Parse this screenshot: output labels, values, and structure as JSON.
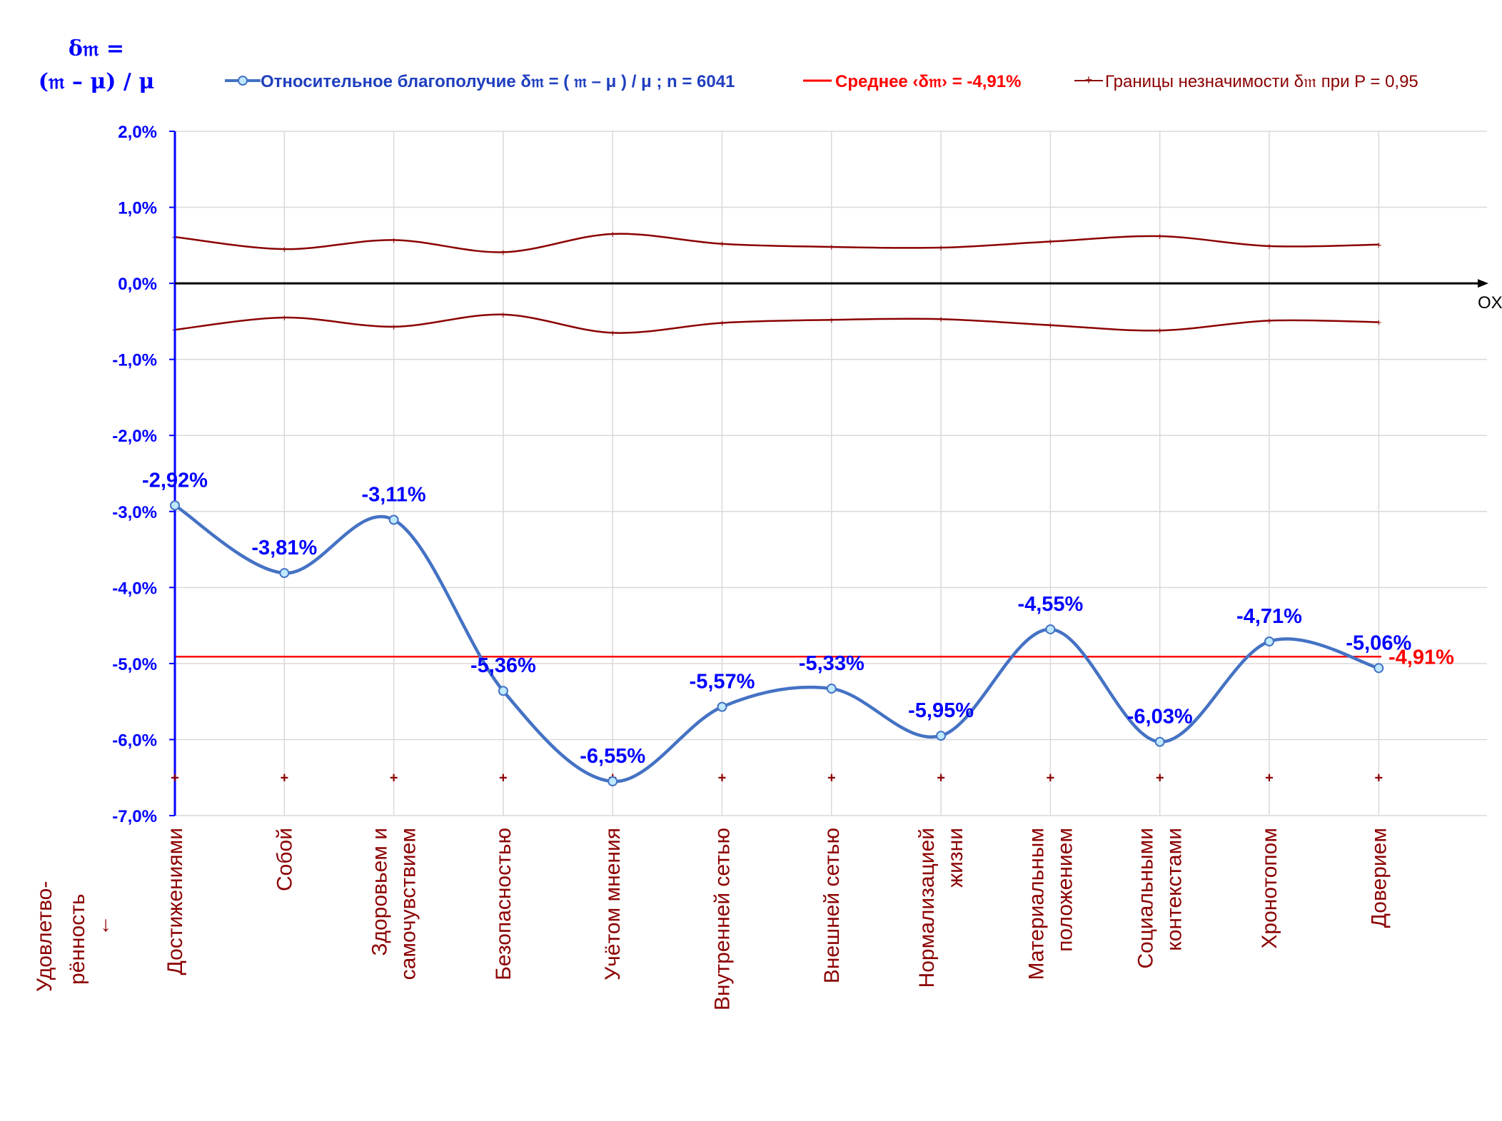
{
  "chart_data": {
    "type": "line",
    "y_title_line1": "δ𝔪 =",
    "y_title_line2": "(𝔪 – μ) / μ",
    "x_axis_label": "OX",
    "left_category_title_line1": "Удовлетво-",
    "left_category_title_line2": "рённость",
    "left_category_arrow": "↓",
    "ylim": [
      -7,
      2
    ],
    "y_ticks": [
      2,
      1,
      0,
      -1,
      -2,
      -3,
      -4,
      -5,
      -6,
      -7
    ],
    "y_tick_labels": [
      "2,0%",
      "1,0%",
      "0,0%",
      "-1,0%",
      "-2,0%",
      "-3,0%",
      "-4,0%",
      "-5,0%",
      "-6,0%",
      "-7,0%"
    ],
    "grid": true,
    "legend_position": "top",
    "categories": [
      [
        "Достижениями"
      ],
      [
        "Собой"
      ],
      [
        "Здоровьем и",
        "самочувствием"
      ],
      [
        "Безопасностью"
      ],
      [
        "Учётом мнения"
      ],
      [
        "Внутренней сетью"
      ],
      [
        "Внешней сетью"
      ],
      [
        "Нормализацией",
        "жизни"
      ],
      [
        "Материальным",
        "положением"
      ],
      [
        "Социальными",
        "контекстами"
      ],
      [
        "Хронотопом"
      ],
      [
        "Доверием"
      ]
    ],
    "series": [
      {
        "name": "Относительное благополучие δ𝔪 = ( 𝔪 – μ ) / μ ; n = 6041",
        "color": "#4472c4",
        "values": [
          -2.92,
          -3.81,
          -3.11,
          -5.36,
          -6.55,
          -5.57,
          -5.33,
          -5.95,
          -4.55,
          -6.03,
          -4.71,
          -5.06
        ],
        "labels": [
          "-2,92%",
          "-3,81%",
          "-3,11%",
          "-5,36%",
          "-6,55%",
          "-5,57%",
          "-5,33%",
          "-5,95%",
          "-4,55%",
          "-6,03%",
          "-4,71%",
          "-5,06%"
        ]
      },
      {
        "name": "Среднее ‹δ𝔪› = -4,91%",
        "color": "#ff0000",
        "value": -4.91,
        "label": "-4,91%"
      },
      {
        "name": "Границы незначимости δ𝔪 при P = 0,95",
        "color": "#8b0000",
        "upper": [
          0.61,
          0.45,
          0.57,
          0.41,
          0.65,
          0.52,
          0.48,
          0.47,
          0.55,
          0.62,
          0.49,
          0.51
        ],
        "lower": [
          -0.61,
          -0.45,
          -0.57,
          -0.41,
          -0.65,
          -0.52,
          -0.48,
          -0.47,
          -0.55,
          -0.62,
          -0.49,
          -0.51
        ]
      }
    ],
    "marker_row_value": -6.5
  }
}
